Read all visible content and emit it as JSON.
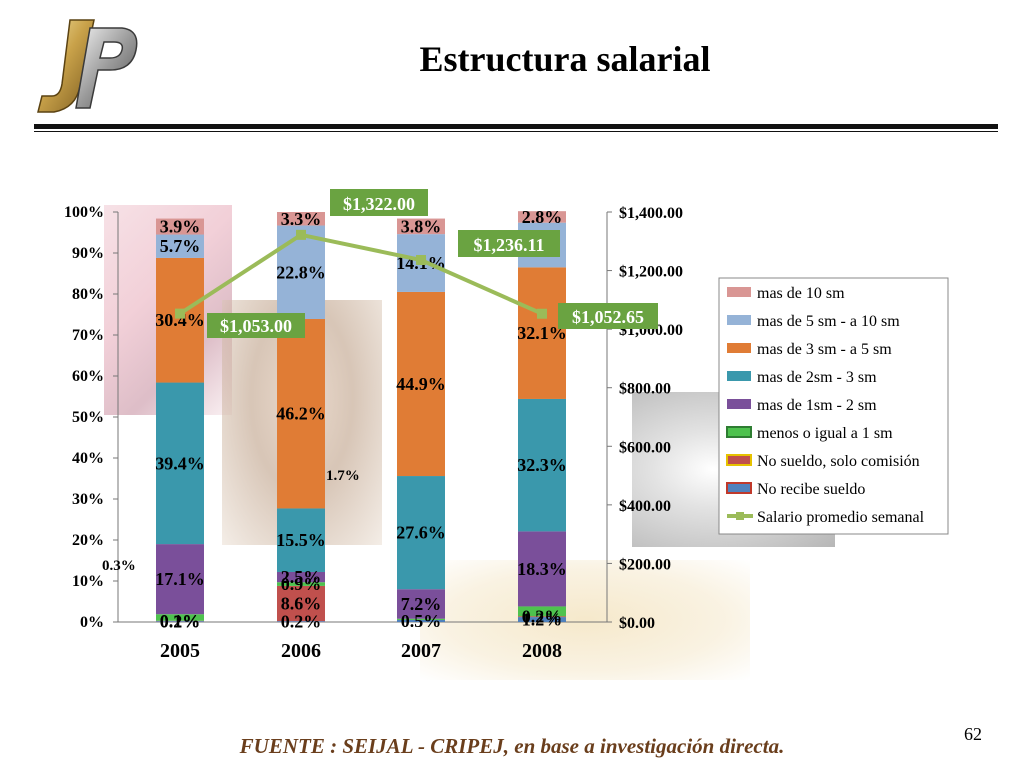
{
  "slide": {
    "title": "Estructura salarial",
    "source": "FUENTE : SEIJAL - CRIPEJ, en base a investigación directa.",
    "page_number": "62",
    "icons": [
      "jp-logo",
      "photo-collage"
    ]
  },
  "chart_data": {
    "type": "bar",
    "stacked": true,
    "categories": [
      "2005",
      "2006",
      "2007",
      "2008"
    ],
    "left_axis": {
      "ticks": [
        "0%",
        "10%",
        "20%",
        "30%",
        "40%",
        "50%",
        "60%",
        "70%",
        "80%",
        "90%",
        "100%"
      ],
      "ylim": [
        0,
        100
      ]
    },
    "right_axis": {
      "ticks": [
        "$0.00",
        "$200.00",
        "$400.00",
        "$600.00",
        "$800.00",
        "$1,000.00",
        "$1,200.00",
        "$1,400.00"
      ],
      "ylim": [
        0,
        1400
      ]
    },
    "series": [
      {
        "name": "No recibe sueldo",
        "color": "#4f81bd",
        "values": [
          0.2,
          0.2,
          0.5,
          1.2
        ],
        "labels": [
          "0.2%",
          "0.2%",
          "0.5%",
          "1.2%"
        ]
      },
      {
        "name": "No sueldo, solo comisión",
        "color": "#c0504d",
        "values": [
          0.1,
          8.6,
          0.0,
          0.2
        ],
        "labels": [
          "0.1%",
          "8.6%",
          "",
          "0.2%"
        ]
      },
      {
        "name": "menos o igual a 1 sm",
        "color": "#4ec24e",
        "values": [
          1.6,
          0.9,
          0.3,
          2.4
        ],
        "labels": [
          "",
          "0.9%",
          "",
          ""
        ]
      },
      {
        "name": "mas de 1sm - 2 sm",
        "color": "#7a4f9a",
        "values": [
          17.1,
          2.5,
          7.2,
          18.3
        ],
        "labels": [
          "17.1%",
          "2.5%",
          "7.2%",
          "18.3%"
        ]
      },
      {
        "name": "mas de 2sm - 3 sm",
        "color": "#3a98ac",
        "values": [
          39.4,
          15.5,
          27.6,
          32.3
        ],
        "labels": [
          "39.4%",
          "15.5%",
          "27.6%",
          "32.3%"
        ]
      },
      {
        "name": "mas de 3 sm - a 5 sm",
        "color": "#e07c35",
        "values": [
          30.4,
          46.2,
          44.9,
          32.1
        ],
        "labels": [
          "30.4%",
          "46.2%",
          "44.9%",
          "32.1%"
        ]
      },
      {
        "name": "mas de 5 sm - a 10 sm",
        "color": "#95b3d7",
        "values": [
          5.7,
          22.8,
          14.1,
          10.9
        ],
        "labels": [
          "5.7%",
          "22.8%",
          "14.1%",
          ""
        ]
      },
      {
        "name": "mas de 10 sm",
        "color": "#d99694",
        "values": [
          3.9,
          3.3,
          3.8,
          2.8
        ],
        "labels": [
          "3.9%",
          "3.3%",
          "3.8%",
          "2.8%"
        ]
      }
    ],
    "line": {
      "name": "Salario promedio semanal",
      "color": "#9bbb59",
      "values": [
        1053.0,
        1322.0,
        1236.11,
        1052.65
      ],
      "labels": [
        "$1,053.00",
        "$1,322.00",
        "$1,236.11",
        "$1,052.65"
      ]
    },
    "annotations": [
      "0.3%",
      "1.7%"
    ],
    "legend_order": [
      "mas de 10 sm",
      "mas de 5 sm - a 10 sm",
      "mas de 3 sm - a 5 sm",
      "mas de 2sm - 3 sm",
      "mas de 1sm - 2 sm",
      "menos o igual a 1 sm",
      "No sueldo, solo comisión",
      "No recibe sueldo",
      "Salario promedio semanal"
    ],
    "legend_position": "right",
    "grid": false
  }
}
